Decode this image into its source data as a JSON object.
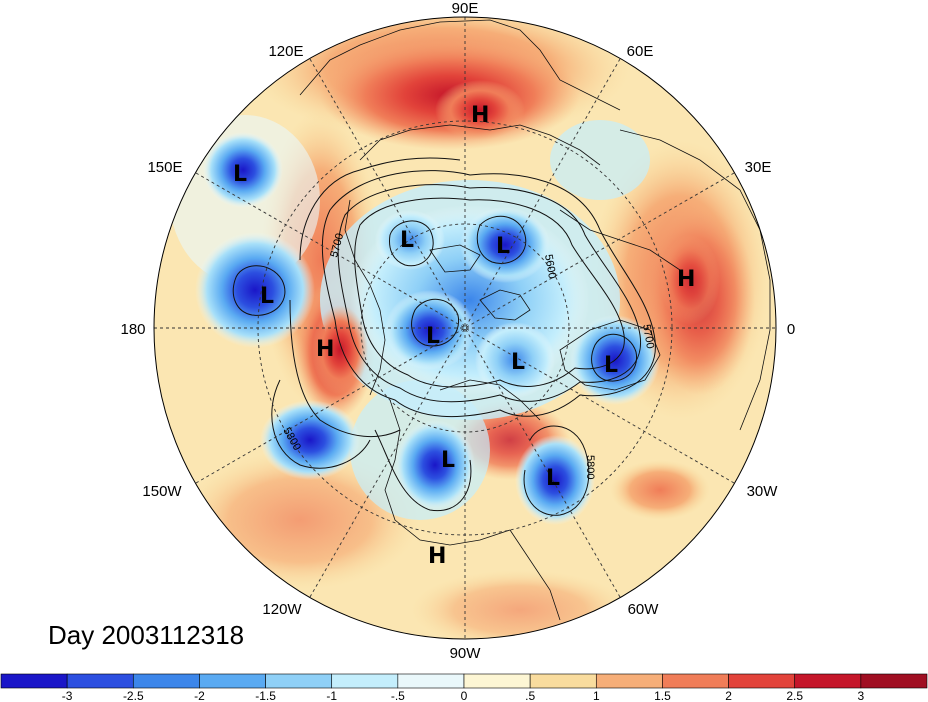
{
  "title": "Day 2003112318",
  "longitude_labels": {
    "top": "90E",
    "upper_left": "120E",
    "upper_right": "60E",
    "left_upper": "150E",
    "right_upper": "30E",
    "left": "180",
    "right": "0",
    "left_lower": "150W",
    "right_lower": "30W",
    "lower_left": "120W",
    "lower_right": "60W",
    "bottom": "90W"
  },
  "pressure_centers": [
    {
      "label": "H",
      "name": "high-siberia"
    },
    {
      "label": "L",
      "name": "low-kamchatka"
    },
    {
      "label": "L",
      "name": "low-east-siberia"
    },
    {
      "label": "L",
      "name": "low-central-arctic"
    },
    {
      "label": "L",
      "name": "low-north-pacific"
    },
    {
      "label": "H",
      "name": "high-alaska"
    },
    {
      "label": "L",
      "name": "low-canada-arctic"
    },
    {
      "label": "L",
      "name": "low-greenland"
    },
    {
      "label": "L",
      "name": "low-north-atlantic"
    },
    {
      "label": "H",
      "name": "high-europe"
    },
    {
      "label": "L",
      "name": "low-great-lakes"
    },
    {
      "label": "L",
      "name": "low-atlantic"
    },
    {
      "label": "H",
      "name": "high-mexico"
    }
  ],
  "contour_labels": {
    "c1": "5700",
    "c2": "5600",
    "c3": "5700",
    "c4": "5800",
    "c5": "5800"
  },
  "colorbar": {
    "ticks": [
      "-3",
      "-2.5",
      "-2",
      "-1.5",
      "-1",
      "-.5",
      "0",
      ".5",
      "1",
      "1.5",
      "2",
      "2.5",
      "3"
    ],
    "colors": [
      "#1a16c8",
      "#2c4fe0",
      "#3c86ea",
      "#5aaaf2",
      "#8fd0f7",
      "#c4eefc",
      "#eaf8fb",
      "#fdf6d4",
      "#f9dc9e",
      "#f6ae78",
      "#f07d58",
      "#e2433a",
      "#c5162a",
      "#a00e22"
    ]
  }
}
